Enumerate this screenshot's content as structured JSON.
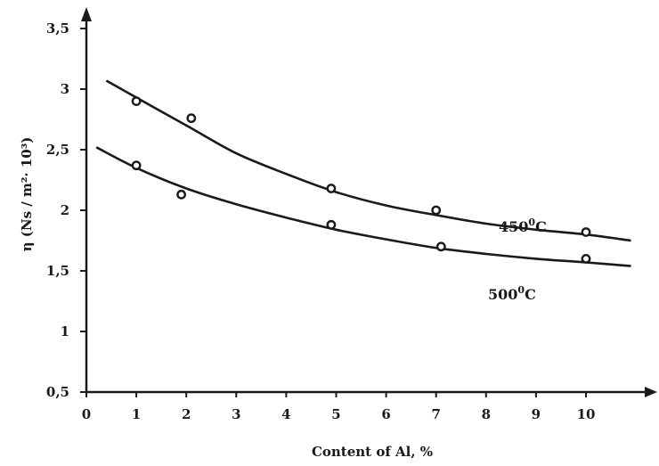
{
  "chart_data": {
    "type": "scatter",
    "xlabel": "Content of Al, %",
    "ylabel": "η (Ns / m²· 10³)",
    "xlim": [
      0,
      11
    ],
    "ylim": [
      0.5,
      4.0
    ],
    "x_ticks": [
      {
        "value": 0,
        "label": "0"
      },
      {
        "value": 1,
        "label": "1"
      },
      {
        "value": 2,
        "label": "2"
      },
      {
        "value": 3,
        "label": "3"
      },
      {
        "value": 4,
        "label": "4"
      },
      {
        "value": 5,
        "label": "5"
      },
      {
        "value": 6,
        "label": "6"
      },
      {
        "value": 7,
        "label": "7"
      },
      {
        "value": 8,
        "label": "8"
      },
      {
        "value": 9,
        "label": "9"
      },
      {
        "value": 10,
        "label": "10"
      }
    ],
    "y_ticks": [
      {
        "value": 0.5,
        "label": "0,5"
      },
      {
        "value": 1,
        "label": "1"
      },
      {
        "value": 1.5,
        "label": "1,5"
      },
      {
        "value": 2,
        "label": "2"
      },
      {
        "value": 2.5,
        "label": "2,5"
      },
      {
        "value": 3,
        "label": "3"
      },
      {
        "value": 3.5,
        "label": "3,5"
      }
    ],
    "grid": false,
    "color": "#1a1a1a",
    "series": [
      {
        "name": "450 ⁰C",
        "label_main": "450",
        "label_sup": "0",
        "label_unit": "C",
        "points": [
          {
            "x": 1,
            "y": 2.9
          },
          {
            "x": 2.1,
            "y": 2.76
          },
          {
            "x": 4.9,
            "y": 2.18
          },
          {
            "x": 7,
            "y": 2.0
          },
          {
            "x": 10,
            "y": 1.82
          }
        ],
        "curve": [
          {
            "x": 0.4,
            "y": 3.07
          },
          {
            "x": 1,
            "y": 2.93
          },
          {
            "x": 2,
            "y": 2.7
          },
          {
            "x": 3,
            "y": 2.47
          },
          {
            "x": 4,
            "y": 2.3
          },
          {
            "x": 5,
            "y": 2.15
          },
          {
            "x": 6,
            "y": 2.04
          },
          {
            "x": 7,
            "y": 1.96
          },
          {
            "x": 8,
            "y": 1.89
          },
          {
            "x": 9,
            "y": 1.84
          },
          {
            "x": 10,
            "y": 1.8
          },
          {
            "x": 10.9,
            "y": 1.75
          }
        ]
      },
      {
        "name": "500 ⁰C",
        "label_main": "500",
        "label_sup": "0",
        "label_unit": "C",
        "points": [
          {
            "x": 1,
            "y": 2.37
          },
          {
            "x": 1.9,
            "y": 2.13
          },
          {
            "x": 4.9,
            "y": 1.88
          },
          {
            "x": 7.1,
            "y": 1.7
          },
          {
            "x": 10,
            "y": 1.6
          }
        ],
        "curve": [
          {
            "x": 0.2,
            "y": 2.52
          },
          {
            "x": 1,
            "y": 2.35
          },
          {
            "x": 2,
            "y": 2.18
          },
          {
            "x": 3,
            "y": 2.05
          },
          {
            "x": 4,
            "y": 1.94
          },
          {
            "x": 5,
            "y": 1.84
          },
          {
            "x": 6,
            "y": 1.76
          },
          {
            "x": 7,
            "y": 1.69
          },
          {
            "x": 8,
            "y": 1.64
          },
          {
            "x": 9,
            "y": 1.6
          },
          {
            "x": 10,
            "y": 1.57
          },
          {
            "x": 10.9,
            "y": 1.54
          }
        ]
      }
    ]
  }
}
